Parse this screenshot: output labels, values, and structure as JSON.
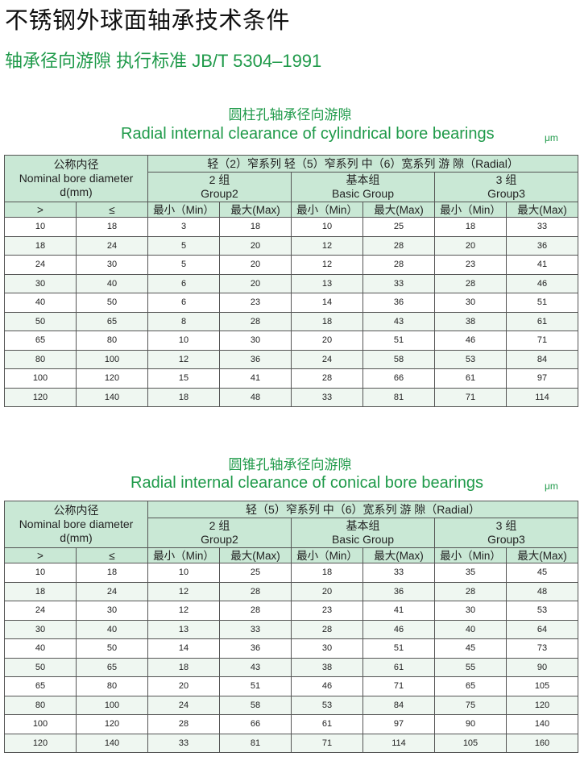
{
  "title": "不锈钢外球面轴承技术条件",
  "subtitle": "轴承径向游隙   执行标准 JB/T 5304–1991",
  "colors": {
    "accent": "#1f9a4a",
    "header_bg": "#c9e8d5",
    "alt_row": "#eff7f1"
  },
  "tables": [
    {
      "title_cn": "圆柱孔轴承径向游隙",
      "title_en": "Radial internal clearance of cylindrical bore bearings",
      "unit": "μm",
      "header": {
        "bore_cn": "公称内径",
        "bore_en": "Nominal bore diameter",
        "bore_unit": "d(mm)",
        "series": "轻（2）窄系列 轻（5）窄系列 中（6）宽系列  游 隙（Radial）",
        "groups": [
          {
            "cn": "2 组",
            "en": "Group2"
          },
          {
            "cn": "基本组",
            "en": "Basic Group"
          },
          {
            "cn": "3 组",
            "en": "Group3"
          }
        ],
        "sub": [
          ">",
          "≤",
          "最小（Min）",
          "最大(Max)",
          "最小（Min）",
          "最大(Max)",
          "最小（Min）",
          "最大(Max)"
        ]
      },
      "rows": [
        [
          "10",
          "18",
          "3",
          "18",
          "10",
          "25",
          "18",
          "33"
        ],
        [
          "18",
          "24",
          "5",
          "20",
          "12",
          "28",
          "20",
          "36"
        ],
        [
          "24",
          "30",
          "5",
          "20",
          "12",
          "28",
          "23",
          "41"
        ],
        [
          "30",
          "40",
          "6",
          "20",
          "13",
          "33",
          "28",
          "46"
        ],
        [
          "40",
          "50",
          "6",
          "23",
          "14",
          "36",
          "30",
          "51"
        ],
        [
          "50",
          "65",
          "8",
          "28",
          "18",
          "43",
          "38",
          "61"
        ],
        [
          "65",
          "80",
          "10",
          "30",
          "20",
          "51",
          "46",
          "71"
        ],
        [
          "80",
          "100",
          "12",
          "36",
          "24",
          "58",
          "53",
          "84"
        ],
        [
          "100",
          "120",
          "15",
          "41",
          "28",
          "66",
          "61",
          "97"
        ],
        [
          "120",
          "140",
          "18",
          "48",
          "33",
          "81",
          "71",
          "114"
        ]
      ]
    },
    {
      "title_cn": "圆锥孔轴承径向游隙",
      "title_en": "Radial internal clearance of conical bore bearings",
      "unit": "μm",
      "header": {
        "bore_cn": "公称内径",
        "bore_en": "Nominal bore diameter",
        "bore_unit": "d(mm)",
        "series": "轻（5）窄系列 中（6）宽系列  游 隙（Radial）",
        "groups": [
          {
            "cn": "2 组",
            "en": "Group2"
          },
          {
            "cn": "基本组",
            "en": "Basic Group"
          },
          {
            "cn": "3 组",
            "en": "Group3"
          }
        ],
        "sub": [
          ">",
          "≤",
          "最小（Min）",
          "最大(Max)",
          "最小（Min）",
          "最大(Max)",
          "最小（Min）",
          "最大(Max)"
        ]
      },
      "rows": [
        [
          "10",
          "18",
          "10",
          "25",
          "18",
          "33",
          "35",
          "45"
        ],
        [
          "18",
          "24",
          "12",
          "28",
          "20",
          "36",
          "28",
          "48"
        ],
        [
          "24",
          "30",
          "12",
          "28",
          "23",
          "41",
          "30",
          "53"
        ],
        [
          "30",
          "40",
          "13",
          "33",
          "28",
          "46",
          "40",
          "64"
        ],
        [
          "40",
          "50",
          "14",
          "36",
          "30",
          "51",
          "45",
          "73"
        ],
        [
          "50",
          "65",
          "18",
          "43",
          "38",
          "61",
          "55",
          "90"
        ],
        [
          "65",
          "80",
          "20",
          "51",
          "46",
          "71",
          "65",
          "105"
        ],
        [
          "80",
          "100",
          "24",
          "58",
          "53",
          "84",
          "75",
          "120"
        ],
        [
          "100",
          "120",
          "28",
          "66",
          "61",
          "97",
          "90",
          "140"
        ],
        [
          "120",
          "140",
          "33",
          "81",
          "71",
          "114",
          "105",
          "160"
        ]
      ]
    }
  ]
}
